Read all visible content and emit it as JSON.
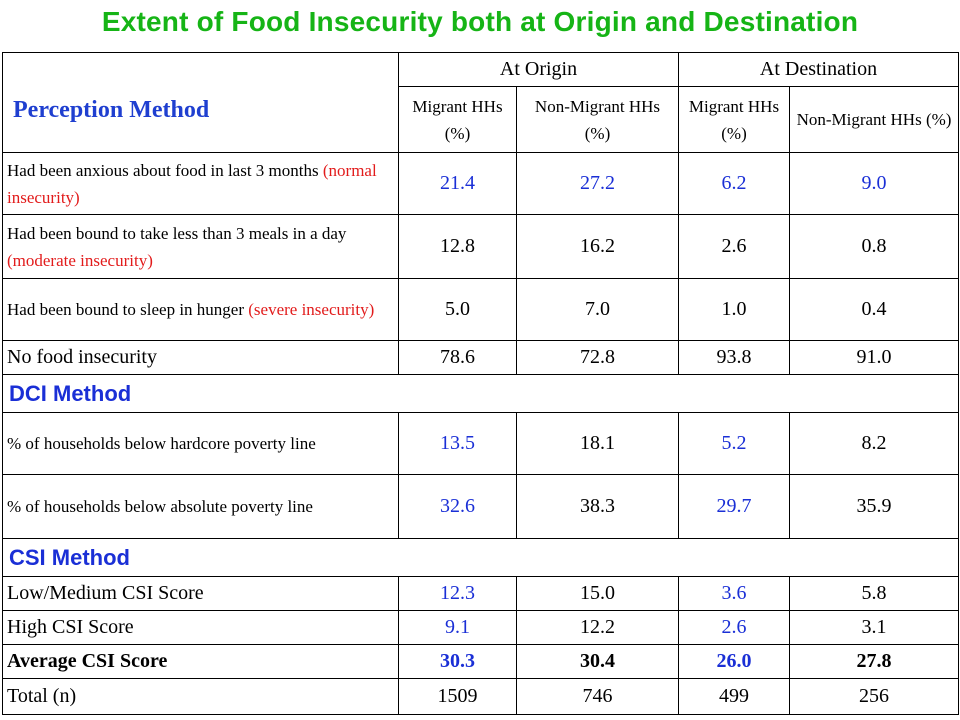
{
  "title": "Extent of Food Insecurity both at Origin and Destination",
  "header": {
    "method": "Perception Method",
    "origin": "At Origin",
    "destination": "At Destination",
    "migrant": "Migrant HHs (%)",
    "non_migrant": "Non-Migrant HHs (%)"
  },
  "perception_rows": [
    {
      "text": "Had been anxious about food in last 3 months ",
      "note": "(normal insecurity)",
      "values": [
        "21.4",
        "27.2",
        "6.2",
        "9.0"
      ]
    },
    {
      "text": "Had been bound to take less than 3 meals in a day ",
      "note": "(moderate insecurity)",
      "values": [
        "12.8",
        "16.2",
        "2.6",
        "0.8"
      ]
    },
    {
      "text": "Had been bound to sleep in hunger ",
      "note": "(severe insecurity)",
      "values": [
        "5.0",
        "7.0",
        "1.0",
        "0.4"
      ]
    },
    {
      "text": "No food insecurity",
      "note": "",
      "values": [
        "78.6",
        "72.8",
        "93.8",
        "91.0"
      ]
    }
  ],
  "dci": {
    "title": "DCI Method",
    "rows": [
      {
        "text": "% of households below hardcore poverty line",
        "values": [
          "13.5",
          "18.1",
          "5.2",
          "8.2"
        ]
      },
      {
        "text": "% of households below absolute poverty line",
        "values": [
          "32.6",
          "38.3",
          "29.7",
          "35.9"
        ]
      }
    ]
  },
  "csi": {
    "title": "CSI Method",
    "rows": [
      {
        "text": "Low/Medium CSI Score",
        "values": [
          "12.3",
          "15.0",
          "3.6",
          "5.8"
        ]
      },
      {
        "text": "High CSI Score",
        "values": [
          "9.1",
          "12.2",
          "2.6",
          "3.1"
        ]
      },
      {
        "text": "Average CSI Score",
        "values": [
          "30.3",
          "30.4",
          "26.0",
          "27.8"
        ]
      }
    ]
  },
  "total": {
    "text": "Total  (n)",
    "values": [
      "1509",
      "746",
      "499",
      "256"
    ]
  },
  "colors": {
    "title": "#16b416",
    "highlight": "#1a2fd6",
    "note": "#e21b1b"
  }
}
